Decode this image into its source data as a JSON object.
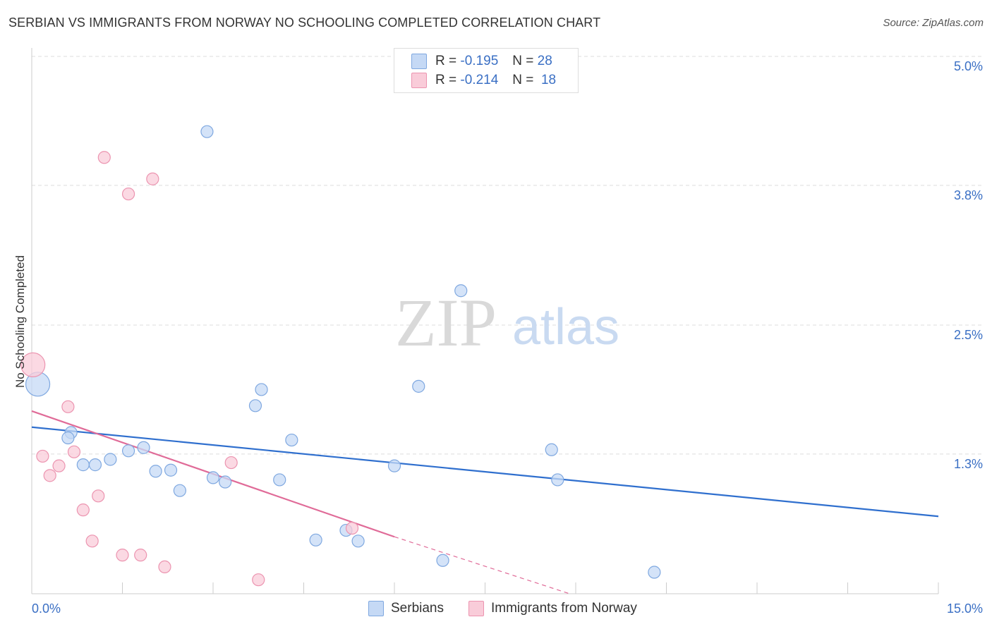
{
  "header": {
    "title": "SERBIAN VS IMMIGRANTS FROM NORWAY NO SCHOOLING COMPLETED CORRELATION CHART",
    "source": "Source: ZipAtlas.com"
  },
  "watermark": {
    "zip": "ZIP",
    "atlas": "atlas"
  },
  "legend": {
    "serbians": {
      "r_label": "R =",
      "r_value": "-0.195",
      "n_label": "N =",
      "n_value": "28"
    },
    "norway": {
      "r_label": "R =",
      "r_value": "-0.214",
      "n_label": "N =",
      "n_value": "18"
    }
  },
  "colors": {
    "serbians_fill": "#c5d9f5",
    "serbians_stroke": "#7fa8e0",
    "serbians_line": "#2f6fce",
    "norway_fill": "#f9ccd9",
    "norway_stroke": "#ec94b0",
    "norway_line": "#e06b98",
    "tick_label": "#3a6fc4"
  },
  "chart_data": {
    "type": "scatter",
    "title": "SERBIAN VS IMMIGRANTS FROM NORWAY NO SCHOOLING COMPLETED CORRELATION CHART",
    "xlabel": "",
    "ylabel": "No Schooling Completed",
    "xlim": [
      0,
      15
    ],
    "ylim": [
      0,
      5.0
    ],
    "x_tick_labels": [
      {
        "value": 0,
        "label": "0.0%"
      },
      {
        "value": 15,
        "label": "15.0%"
      }
    ],
    "y_ticks": [
      {
        "value": 5.0,
        "label": "5.0%"
      },
      {
        "value": 3.8,
        "label": "3.8%"
      },
      {
        "value": 2.5,
        "label": "2.5%"
      },
      {
        "value": 1.3,
        "label": "1.3%"
      }
    ],
    "legend_position": "top-center",
    "series": [
      {
        "name": "Serbians",
        "key": "serbians",
        "points": [
          {
            "x": 0.1,
            "y": 1.95,
            "big": true
          },
          {
            "x": 0.65,
            "y": 1.5
          },
          {
            "x": 0.6,
            "y": 1.45
          },
          {
            "x": 0.85,
            "y": 1.2
          },
          {
            "x": 1.05,
            "y": 1.2
          },
          {
            "x": 1.3,
            "y": 1.25
          },
          {
            "x": 1.6,
            "y": 1.33
          },
          {
            "x": 1.85,
            "y": 1.36
          },
          {
            "x": 2.05,
            "y": 1.14
          },
          {
            "x": 2.3,
            "y": 1.15
          },
          {
            "x": 2.45,
            "y": 0.96
          },
          {
            "x": 2.9,
            "y": 4.3
          },
          {
            "x": 3.0,
            "y": 1.08
          },
          {
            "x": 3.2,
            "y": 1.04
          },
          {
            "x": 3.7,
            "y": 1.75
          },
          {
            "x": 3.8,
            "y": 1.9
          },
          {
            "x": 4.1,
            "y": 1.06
          },
          {
            "x": 4.3,
            "y": 1.43
          },
          {
            "x": 4.7,
            "y": 0.5
          },
          {
            "x": 5.2,
            "y": 0.59
          },
          {
            "x": 5.4,
            "y": 0.49
          },
          {
            "x": 6.0,
            "y": 1.19
          },
          {
            "x": 6.4,
            "y": 1.93
          },
          {
            "x": 6.8,
            "y": 0.31
          },
          {
            "x": 7.1,
            "y": 2.82
          },
          {
            "x": 8.6,
            "y": 1.34
          },
          {
            "x": 8.7,
            "y": 1.06
          },
          {
            "x": 10.3,
            "y": 0.2
          }
        ],
        "trendline": {
          "x0": 0,
          "y0": 1.55,
          "x1": 15,
          "y1": 0.72
        }
      },
      {
        "name": "Immigrants from Norway",
        "key": "norway",
        "points": [
          {
            "x": 0.02,
            "y": 2.13,
            "big": true
          },
          {
            "x": 0.18,
            "y": 1.28
          },
          {
            "x": 0.3,
            "y": 1.1
          },
          {
            "x": 0.45,
            "y": 1.19
          },
          {
            "x": 0.6,
            "y": 1.74
          },
          {
            "x": 0.7,
            "y": 1.32
          },
          {
            "x": 0.85,
            "y": 0.78
          },
          {
            "x": 1.0,
            "y": 0.49
          },
          {
            "x": 1.1,
            "y": 0.91
          },
          {
            "x": 1.2,
            "y": 4.06
          },
          {
            "x": 1.5,
            "y": 0.36
          },
          {
            "x": 1.6,
            "y": 3.72
          },
          {
            "x": 1.8,
            "y": 0.36
          },
          {
            "x": 2.0,
            "y": 3.86
          },
          {
            "x": 2.2,
            "y": 0.25
          },
          {
            "x": 3.3,
            "y": 1.22
          },
          {
            "x": 3.75,
            "y": 0.13
          },
          {
            "x": 5.3,
            "y": 0.61
          }
        ],
        "trendline": {
          "x0": 0,
          "y0": 1.7,
          "x1": 6.0,
          "y1": 0.53,
          "dash_to_x": 8.9,
          "dash_to_y": 0.0
        }
      }
    ]
  },
  "bottom_legend": {
    "serbians": "Serbians",
    "norway": "Immigrants from Norway"
  }
}
